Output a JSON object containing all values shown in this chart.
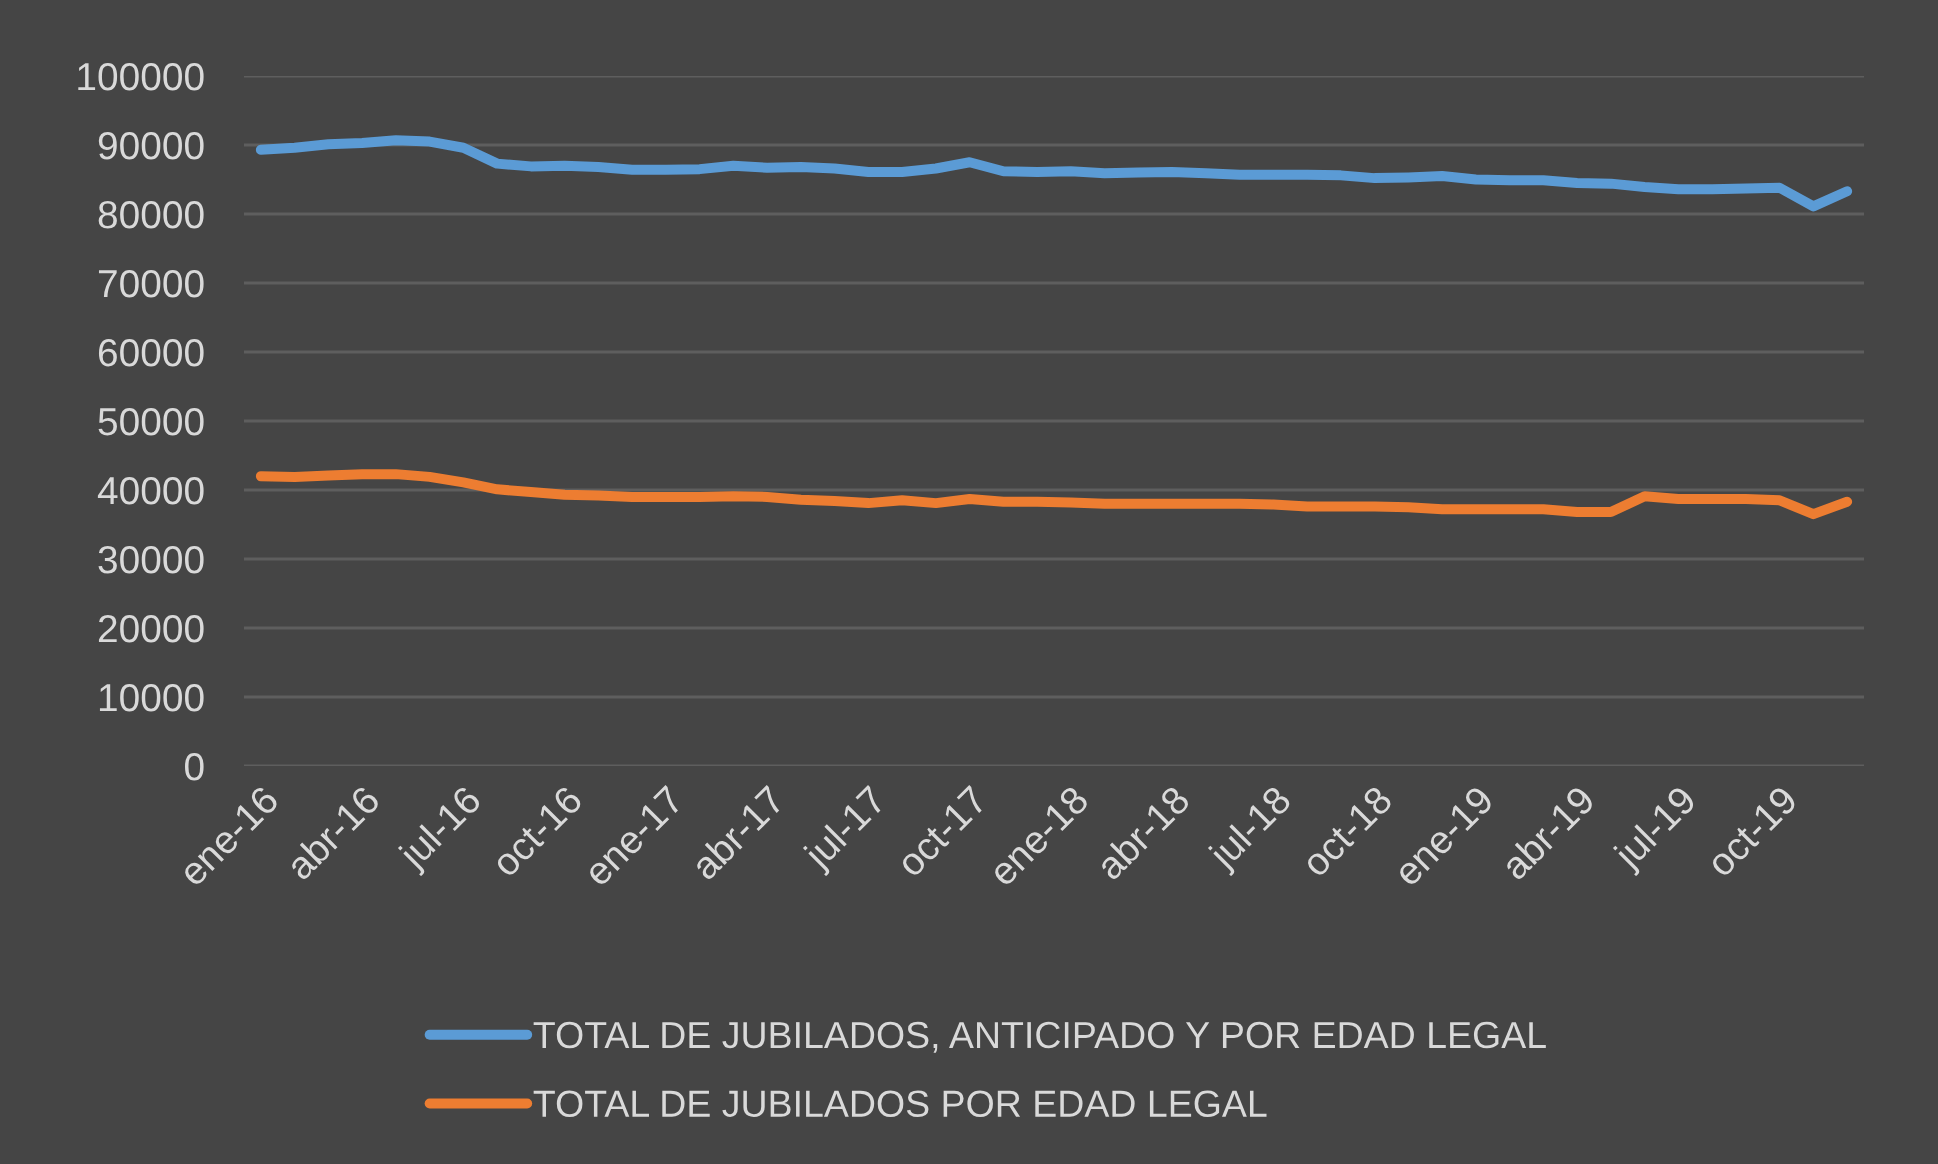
{
  "chart_data": {
    "type": "line",
    "categories": [
      "ene-16",
      null,
      null,
      "abr-16",
      null,
      null,
      "jul-16",
      null,
      null,
      "oct-16",
      null,
      null,
      "ene-17",
      null,
      null,
      "abr-17",
      null,
      null,
      "jul-17",
      null,
      null,
      "oct-17",
      null,
      null,
      "ene-18",
      null,
      null,
      "abr-18",
      null,
      null,
      "jul-18",
      null,
      null,
      "oct-18",
      null,
      null,
      "ene-19",
      null,
      null,
      "abr-19",
      null,
      null,
      "jul-19",
      null,
      null,
      "oct-19",
      null,
      null
    ],
    "series": [
      {
        "name": "TOTAL DE JUBILADOS, ANTICIPADO Y POR EDAD LEGAL",
        "color": "#5b9bd5",
        "values": [
          89300,
          89600,
          90100,
          90300,
          90700,
          90500,
          89600,
          87300,
          86900,
          87000,
          86800,
          86400,
          86400,
          86500,
          87000,
          86700,
          86800,
          86600,
          86100,
          86100,
          86600,
          87500,
          86200,
          86100,
          86200,
          85900,
          86000,
          86100,
          85900,
          85700,
          85700,
          85700,
          85600,
          85200,
          85300,
          85500,
          85000,
          84900,
          84900,
          84500,
          84400,
          83900,
          83600,
          83600,
          83700,
          83800,
          81100,
          83300
        ]
      },
      {
        "name": "TOTAL DE JUBILADOS POR EDAD LEGAL",
        "color": "#ed7d31",
        "values": [
          42000,
          41900,
          42100,
          42300,
          42300,
          41900,
          41100,
          40100,
          39700,
          39300,
          39200,
          39000,
          39000,
          39000,
          39100,
          39000,
          38600,
          38400,
          38100,
          38500,
          38100,
          38700,
          38300,
          38300,
          38200,
          38000,
          38000,
          38000,
          38000,
          38000,
          37900,
          37600,
          37600,
          37600,
          37500,
          37200,
          37200,
          37200,
          37200,
          36800,
          36800,
          39100,
          38700,
          38700,
          38700,
          38500,
          36500,
          38300
        ]
      }
    ],
    "ylim": [
      0,
      100000
    ],
    "yticks": [
      0,
      10000,
      20000,
      30000,
      40000,
      50000,
      60000,
      70000,
      80000,
      90000,
      100000
    ],
    "grid": "y",
    "legend": "bottom",
    "marker": "none",
    "line_style": "solid"
  }
}
